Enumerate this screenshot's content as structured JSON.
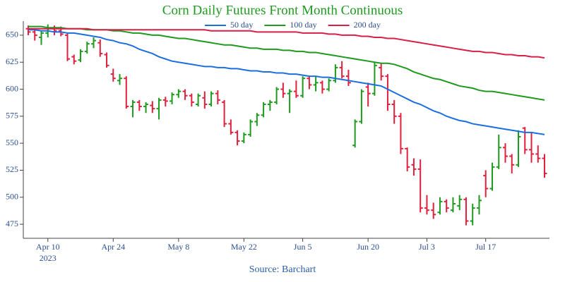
{
  "chart_data": {
    "type": "ohlc",
    "title": "Corn Daily Futures Front Month Continuous",
    "source": "Source: Barchart",
    "x_year_label": "2023",
    "categories": [
      null,
      null,
      null,
      "Apr 10",
      null,
      null,
      null,
      null,
      null,
      null,
      null,
      null,
      null,
      "Apr 24",
      null,
      null,
      null,
      null,
      null,
      null,
      null,
      null,
      null,
      "May 8",
      null,
      null,
      null,
      null,
      null,
      null,
      null,
      null,
      null,
      "May 22",
      null,
      null,
      null,
      null,
      null,
      null,
      null,
      null,
      "Jun 5",
      null,
      null,
      null,
      null,
      null,
      null,
      null,
      null,
      null,
      "Jun 20",
      null,
      null,
      null,
      null,
      null,
      null,
      null,
      null,
      "Jul 3",
      null,
      null,
      null,
      null,
      null,
      null,
      null,
      null,
      "Jul 17",
      null,
      null,
      null,
      null,
      null,
      null,
      null,
      null,
      null
    ],
    "open": [
      656,
      653,
      648,
      652,
      656,
      654,
      650,
      630,
      627,
      635,
      642,
      643,
      632,
      614,
      608,
      610,
      584,
      588,
      584,
      585,
      582,
      590,
      589,
      595,
      598,
      594,
      586,
      592,
      586,
      596,
      588,
      568,
      560,
      552,
      558,
      570,
      576,
      586,
      588,
      600,
      596,
      598,
      594,
      610,
      604,
      606,
      600,
      608,
      620,
      612,
      548,
      570,
      602,
      596,
      620,
      612,
      586,
      575,
      545,
      530,
      526,
      490,
      488,
      486,
      496,
      488,
      492,
      498,
      478,
      490,
      520,
      508,
      528,
      546,
      538,
      530,
      564,
      544,
      540,
      536
    ],
    "high": [
      659,
      656,
      654,
      660,
      659,
      658,
      652,
      632,
      637,
      644,
      648,
      646,
      634,
      619,
      614,
      612,
      590,
      590,
      588,
      589,
      592,
      593,
      597,
      600,
      600,
      596,
      596,
      598,
      598,
      599,
      590,
      572,
      562,
      560,
      572,
      578,
      588,
      590,
      602,
      606,
      600,
      608,
      612,
      612,
      612,
      608,
      610,
      623,
      626,
      618,
      572,
      600,
      606,
      625,
      624,
      614,
      590,
      578,
      546,
      536,
      535,
      502,
      495,
      500,
      498,
      500,
      502,
      500,
      494,
      502,
      525,
      532,
      558,
      550,
      540,
      562,
      565,
      560,
      548,
      540
    ],
    "low": [
      650,
      645,
      641,
      648,
      650,
      649,
      626,
      623,
      625,
      633,
      638,
      630,
      620,
      607,
      604,
      582,
      574,
      580,
      578,
      578,
      572,
      584,
      586,
      592,
      590,
      584,
      584,
      582,
      584,
      586,
      565,
      558,
      548,
      550,
      556,
      566,
      574,
      580,
      586,
      592,
      578,
      592,
      592,
      600,
      598,
      596,
      598,
      606,
      610,
      603,
      546,
      568,
      584,
      594,
      608,
      580,
      568,
      540,
      524,
      520,
      486,
      484,
      480,
      484,
      486,
      486,
      488,
      474,
      474,
      484,
      500,
      506,
      526,
      532,
      522,
      528,
      540,
      532,
      532,
      518
    ],
    "close": [
      653,
      650,
      652,
      656,
      654,
      651,
      628,
      626,
      635,
      642,
      645,
      633,
      622,
      610,
      610,
      584,
      588,
      584,
      586,
      582,
      590,
      589,
      595,
      598,
      594,
      588,
      594,
      586,
      596,
      590,
      568,
      560,
      552,
      558,
      570,
      576,
      586,
      588,
      600,
      596,
      598,
      594,
      610,
      604,
      606,
      600,
      608,
      620,
      612,
      606,
      570,
      598,
      596,
      622,
      612,
      586,
      575,
      545,
      528,
      526,
      490,
      488,
      484,
      496,
      490,
      494,
      498,
      478,
      490,
      497,
      508,
      528,
      546,
      538,
      530,
      556,
      544,
      540,
      536,
      522
    ],
    "up_color": "#1e9a1e",
    "down_color": "#e0203c",
    "series": [
      {
        "name": "50 day",
        "color": "#1a6fe0",
        "values": [
          655,
          655,
          654,
          654,
          653,
          653,
          652,
          652,
          651,
          650,
          649,
          648,
          646,
          645,
          643,
          642,
          640,
          637,
          635,
          633,
          630,
          628,
          626,
          625,
          624,
          623,
          622,
          621,
          621,
          620,
          620,
          619,
          619,
          618,
          617,
          617,
          616,
          616,
          615,
          615,
          614,
          614,
          613,
          612,
          612,
          611,
          611,
          610,
          609,
          608,
          607,
          606,
          605,
          604,
          603,
          600,
          597,
          594,
          591,
          588,
          586,
          583,
          580,
          578,
          575,
          573,
          571,
          570,
          568,
          567,
          566,
          565,
          564,
          563,
          562,
          561,
          560,
          560,
          559,
          558
        ]
      },
      {
        "name": "100 day",
        "color": "#1e9a1e",
        "values": [
          658,
          658,
          658,
          657,
          657,
          657,
          656,
          656,
          656,
          655,
          655,
          655,
          655,
          654,
          654,
          653,
          652,
          652,
          651,
          650,
          650,
          649,
          648,
          647,
          647,
          646,
          645,
          644,
          643,
          642,
          641,
          641,
          640,
          639,
          638,
          638,
          637,
          637,
          637,
          636,
          636,
          635,
          635,
          634,
          634,
          633,
          632,
          631,
          630,
          629,
          628,
          627,
          626,
          625,
          624,
          624,
          623,
          621,
          619,
          616,
          614,
          612,
          610,
          609,
          607,
          605,
          603,
          602,
          601,
          599,
          598,
          598,
          597,
          596,
          595,
          594,
          593,
          592,
          591,
          590
        ]
      },
      {
        "name": "200 day",
        "color": "#d81f48",
        "values": [
          656,
          656,
          656,
          656,
          656,
          656,
          656,
          656,
          656,
          656,
          655,
          655,
          655,
          655,
          655,
          655,
          655,
          655,
          655,
          655,
          655,
          655,
          655,
          655,
          655,
          655,
          655,
          655,
          654,
          654,
          654,
          654,
          654,
          654,
          654,
          653,
          653,
          653,
          653,
          653,
          653,
          653,
          652,
          652,
          652,
          652,
          651,
          651,
          650,
          650,
          650,
          649,
          649,
          648,
          648,
          647,
          647,
          646,
          645,
          644,
          643,
          642,
          641,
          640,
          639,
          638,
          637,
          636,
          635,
          635,
          634,
          634,
          633,
          632,
          632,
          631,
          631,
          630,
          630,
          629
        ]
      }
    ],
    "ylim": [
      462,
      663
    ],
    "yticks": [
      475,
      500,
      525,
      550,
      575,
      600,
      625,
      650
    ]
  }
}
